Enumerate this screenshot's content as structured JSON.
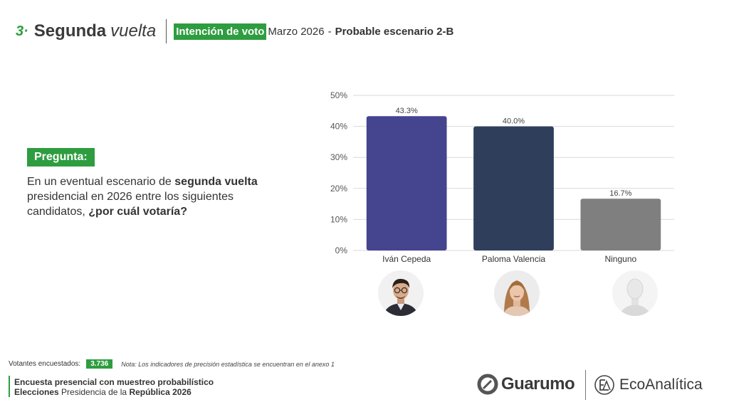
{
  "header": {
    "section_number": "3·",
    "title_bold": "Segunda",
    "title_italic": "vuelta",
    "tag": "Intención de voto",
    "date": "Marzo  2026",
    "dash": "-",
    "scenario": "Probable escenario 2-B"
  },
  "question": {
    "label": "Pregunta:",
    "t1": "En un eventual escenario de ",
    "b1": "segunda vuelta",
    "t2": " presidencial en 2026 entre los siguientes candidatos, ",
    "b2": "¿por cuál votaría?"
  },
  "chart_data": {
    "type": "bar",
    "categories": [
      "Iván Cepeda",
      "Paloma Valencia",
      "Ninguno"
    ],
    "values": [
      43.3,
      40.0,
      16.7
    ],
    "value_labels": [
      "43.3%",
      "40.0%",
      "16.7%"
    ],
    "colors": [
      "#45448f",
      "#2f3e5b",
      "#7f7f7f"
    ],
    "ylim": [
      0,
      50
    ],
    "yticks": [
      "0%",
      "10%",
      "20%",
      "30%",
      "40%",
      "50%"
    ],
    "grid": true,
    "legend": "none"
  },
  "footer": {
    "voters_label": "Votantes encuestados:",
    "voters_count": "3.736",
    "note": "Nota: Los indicadores de precisión estadística se encuentran en el anexo 1",
    "line1": "Encuesta presencial con muestreo probabilístico",
    "line2_bold": "Elecciones",
    "line2_mid": " Presidencia de la ",
    "line2_bold2": "República 2026"
  },
  "logos": {
    "guarumo": "Guarumo",
    "ecoanalitica": "EcoAnalítica",
    "green": "#2e9d3f"
  },
  "icons": {
    "avatar_1": "person-photo-icon",
    "avatar_2": "person-photo-icon",
    "avatar_3": "mannequin-icon",
    "logo_1": "guarumo-logo-icon",
    "logo_2": "ecoanalitica-logo-icon"
  }
}
